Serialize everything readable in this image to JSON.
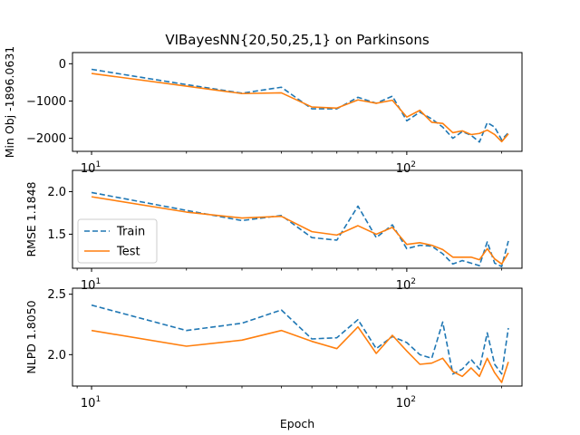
{
  "chart_data": {
    "title": "VIBayesNN{20,50,25,1} on Parkinsons",
    "type": "line",
    "shared_xlabel": "Epoch",
    "x_scale": "log",
    "x_ticks": [
      {
        "value": 10,
        "base": "10",
        "exp": "1"
      },
      {
        "value": 100,
        "base": "10",
        "exp": "2"
      }
    ],
    "x_range": [
      8.7,
      232
    ],
    "colors": {
      "train": "#1f77b4",
      "test": "#ff7f0e"
    },
    "legend": {
      "location": "lower-left of panel 2",
      "entries": [
        "Train",
        "Test"
      ]
    },
    "panels": [
      {
        "ylabel": "Min Obj -1896.0631",
        "ylim": [
          -2350,
          300
        ],
        "yticks": [
          {
            "value": 0,
            "label": "0"
          },
          {
            "value": -1000,
            "label": "−1000"
          },
          {
            "value": -2000,
            "label": "−2000"
          }
        ],
        "series": [
          {
            "name": "Train",
            "style": "dashed",
            "x": [
              10,
              20,
              30,
              40,
              50,
              60,
              70,
              80,
              90,
              100,
              110,
              120,
              130,
              140,
              150,
              160,
              170,
              180,
              190,
              200,
              210
            ],
            "y": [
              -150,
              -560,
              -790,
              -630,
              -1210,
              -1210,
              -900,
              -1060,
              -870,
              -1530,
              -1300,
              -1480,
              -1700,
              -2000,
              -1820,
              -1920,
              -2100,
              -1580,
              -1700,
              -2040,
              -1850
            ]
          },
          {
            "name": "Test",
            "style": "solid",
            "x": [
              10,
              20,
              30,
              40,
              50,
              60,
              70,
              80,
              90,
              100,
              110,
              120,
              130,
              140,
              150,
              160,
              170,
              180,
              190,
              200,
              210
            ],
            "y": [
              -260,
              -600,
              -800,
              -780,
              -1160,
              -1190,
              -970,
              -1060,
              -980,
              -1430,
              -1250,
              -1570,
              -1600,
              -1850,
              -1800,
              -1900,
              -1870,
              -1780,
              -1900,
              -2090,
              -1880
            ]
          }
        ]
      },
      {
        "ylabel": "RMSE 1.1848",
        "ylim": [
          1.1,
          2.25
        ],
        "yticks": [
          {
            "value": 2.0,
            "label": "2.0"
          },
          {
            "value": 1.5,
            "label": "1.5"
          }
        ],
        "series": [
          {
            "name": "Train",
            "style": "dashed",
            "x": [
              10,
              20,
              30,
              40,
              50,
              60,
              70,
              80,
              90,
              100,
              110,
              120,
              130,
              140,
              150,
              160,
              170,
              180,
              190,
              200,
              210
            ],
            "y": [
              1.99,
              1.78,
              1.66,
              1.72,
              1.46,
              1.43,
              1.83,
              1.46,
              1.61,
              1.33,
              1.37,
              1.36,
              1.27,
              1.15,
              1.19,
              1.16,
              1.13,
              1.41,
              1.16,
              1.12,
              1.42
            ]
          },
          {
            "name": "Test",
            "style": "solid",
            "x": [
              10,
              20,
              30,
              40,
              50,
              60,
              70,
              80,
              90,
              100,
              110,
              120,
              130,
              140,
              150,
              160,
              170,
              180,
              190,
              200,
              210
            ],
            "y": [
              1.94,
              1.76,
              1.69,
              1.71,
              1.53,
              1.49,
              1.6,
              1.5,
              1.58,
              1.38,
              1.4,
              1.37,
              1.32,
              1.23,
              1.23,
              1.23,
              1.2,
              1.33,
              1.21,
              1.15,
              1.28
            ]
          }
        ]
      },
      {
        "ylabel": "NLPD 1.8050",
        "ylim": [
          1.74,
          2.55
        ],
        "yticks": [
          {
            "value": 2.5,
            "label": "2.5"
          },
          {
            "value": 2.0,
            "label": "2.0"
          }
        ],
        "series": [
          {
            "name": "Train",
            "style": "dashed",
            "x": [
              10,
              20,
              30,
              40,
              50,
              60,
              70,
              80,
              90,
              100,
              110,
              120,
              130,
              140,
              150,
              160,
              170,
              180,
              190,
              200,
              210
            ],
            "y": [
              2.41,
              2.2,
              2.26,
              2.37,
              2.13,
              2.14,
              2.29,
              2.05,
              2.15,
              2.1,
              2.0,
              1.97,
              2.27,
              1.84,
              1.88,
              1.96,
              1.88,
              2.18,
              1.92,
              1.84,
              2.22
            ]
          },
          {
            "name": "Test",
            "style": "solid",
            "x": [
              10,
              20,
              30,
              40,
              50,
              60,
              70,
              80,
              90,
              100,
              110,
              120,
              130,
              140,
              150,
              160,
              170,
              180,
              190,
              200,
              210
            ],
            "y": [
              2.2,
              2.07,
              2.12,
              2.2,
              2.11,
              2.05,
              2.23,
              2.01,
              2.16,
              2.03,
              1.92,
              1.93,
              1.97,
              1.86,
              1.82,
              1.89,
              1.82,
              1.97,
              1.85,
              1.77,
              1.94
            ]
          }
        ]
      }
    ]
  }
}
